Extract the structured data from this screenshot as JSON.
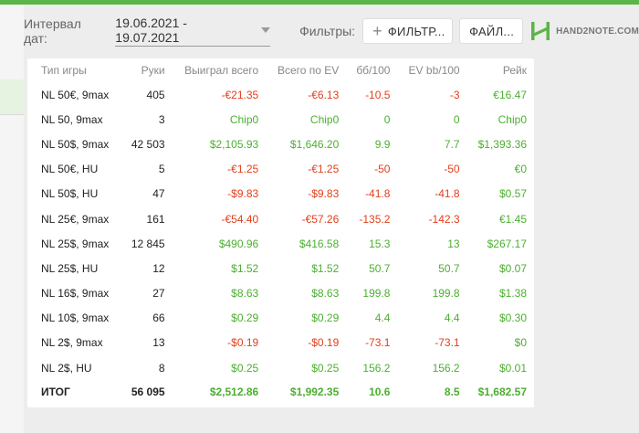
{
  "header": {
    "interval_label": "Интервал дат:",
    "date_range": "19.06.2021 - 19.07.2021",
    "filters_label": "Фильтры:",
    "filter_button": "ФИЛЬТР...",
    "file_button": "ФАЙЛ...",
    "logo_text": "HAND2NOTE.COM"
  },
  "colors": {
    "positive": "#4caf30",
    "negative": "#e2401c",
    "brand": "#5bb548"
  },
  "table": {
    "columns": [
      "Тип игры",
      "Руки",
      "Выиграл всего",
      "Всего по EV",
      "бб/100",
      "EV bb/100",
      "Рейк"
    ],
    "rows": [
      {
        "game": "NL 50€, 9max",
        "hands": "405",
        "won": "-€21.35",
        "ev": "-€6.13",
        "bb100": "-10.5",
        "evbb": "-3",
        "rake": "€16.47"
      },
      {
        "game": "NL 50, 9max",
        "hands": "3",
        "won": "Chip0",
        "ev": "Chip0",
        "bb100": "0",
        "evbb": "0",
        "rake": "Chip0"
      },
      {
        "game": "NL 50$, 9max",
        "hands": "42 503",
        "won": "$2,105.93",
        "ev": "$1,646.20",
        "bb100": "9.9",
        "evbb": "7.7",
        "rake": "$1,393.36"
      },
      {
        "game": "NL 50€, HU",
        "hands": "5",
        "won": "-€1.25",
        "ev": "-€1.25",
        "bb100": "-50",
        "evbb": "-50",
        "rake": "€0"
      },
      {
        "game": "NL 50$, HU",
        "hands": "47",
        "won": "-$9.83",
        "ev": "-$9.83",
        "bb100": "-41.8",
        "evbb": "-41.8",
        "rake": "$0.57"
      },
      {
        "game": "NL 25€, 9max",
        "hands": "161",
        "won": "-€54.40",
        "ev": "-€57.26",
        "bb100": "-135.2",
        "evbb": "-142.3",
        "rake": "€1.45"
      },
      {
        "game": "NL 25$, 9max",
        "hands": "12 845",
        "won": "$490.96",
        "ev": "$416.58",
        "bb100": "15.3",
        "evbb": "13",
        "rake": "$267.17"
      },
      {
        "game": "NL 25$, HU",
        "hands": "12",
        "won": "$1.52",
        "ev": "$1.52",
        "bb100": "50.7",
        "evbb": "50.7",
        "rake": "$0.07"
      },
      {
        "game": "NL 16$, 9max",
        "hands": "27",
        "won": "$8.63",
        "ev": "$8.63",
        "bb100": "199.8",
        "evbb": "199.8",
        "rake": "$1.38"
      },
      {
        "game": "NL 10$, 9max",
        "hands": "66",
        "won": "$0.29",
        "ev": "$0.29",
        "bb100": "4.4",
        "evbb": "4.4",
        "rake": "$0.30"
      },
      {
        "game": "NL 2$, 9max",
        "hands": "13",
        "won": "-$0.19",
        "ev": "-$0.19",
        "bb100": "-73.1",
        "evbb": "-73.1",
        "rake": "$0"
      },
      {
        "game": "NL 2$, HU",
        "hands": "8",
        "won": "$0.25",
        "ev": "$0.25",
        "bb100": "156.2",
        "evbb": "156.2",
        "rake": "$0.01"
      }
    ],
    "total": {
      "game": "ИТОГ",
      "hands": "56 095",
      "won": "$2,512.86",
      "ev": "$1,992.35",
      "bb100": "10.6",
      "evbb": "8.5",
      "rake": "$1,682.57"
    }
  }
}
